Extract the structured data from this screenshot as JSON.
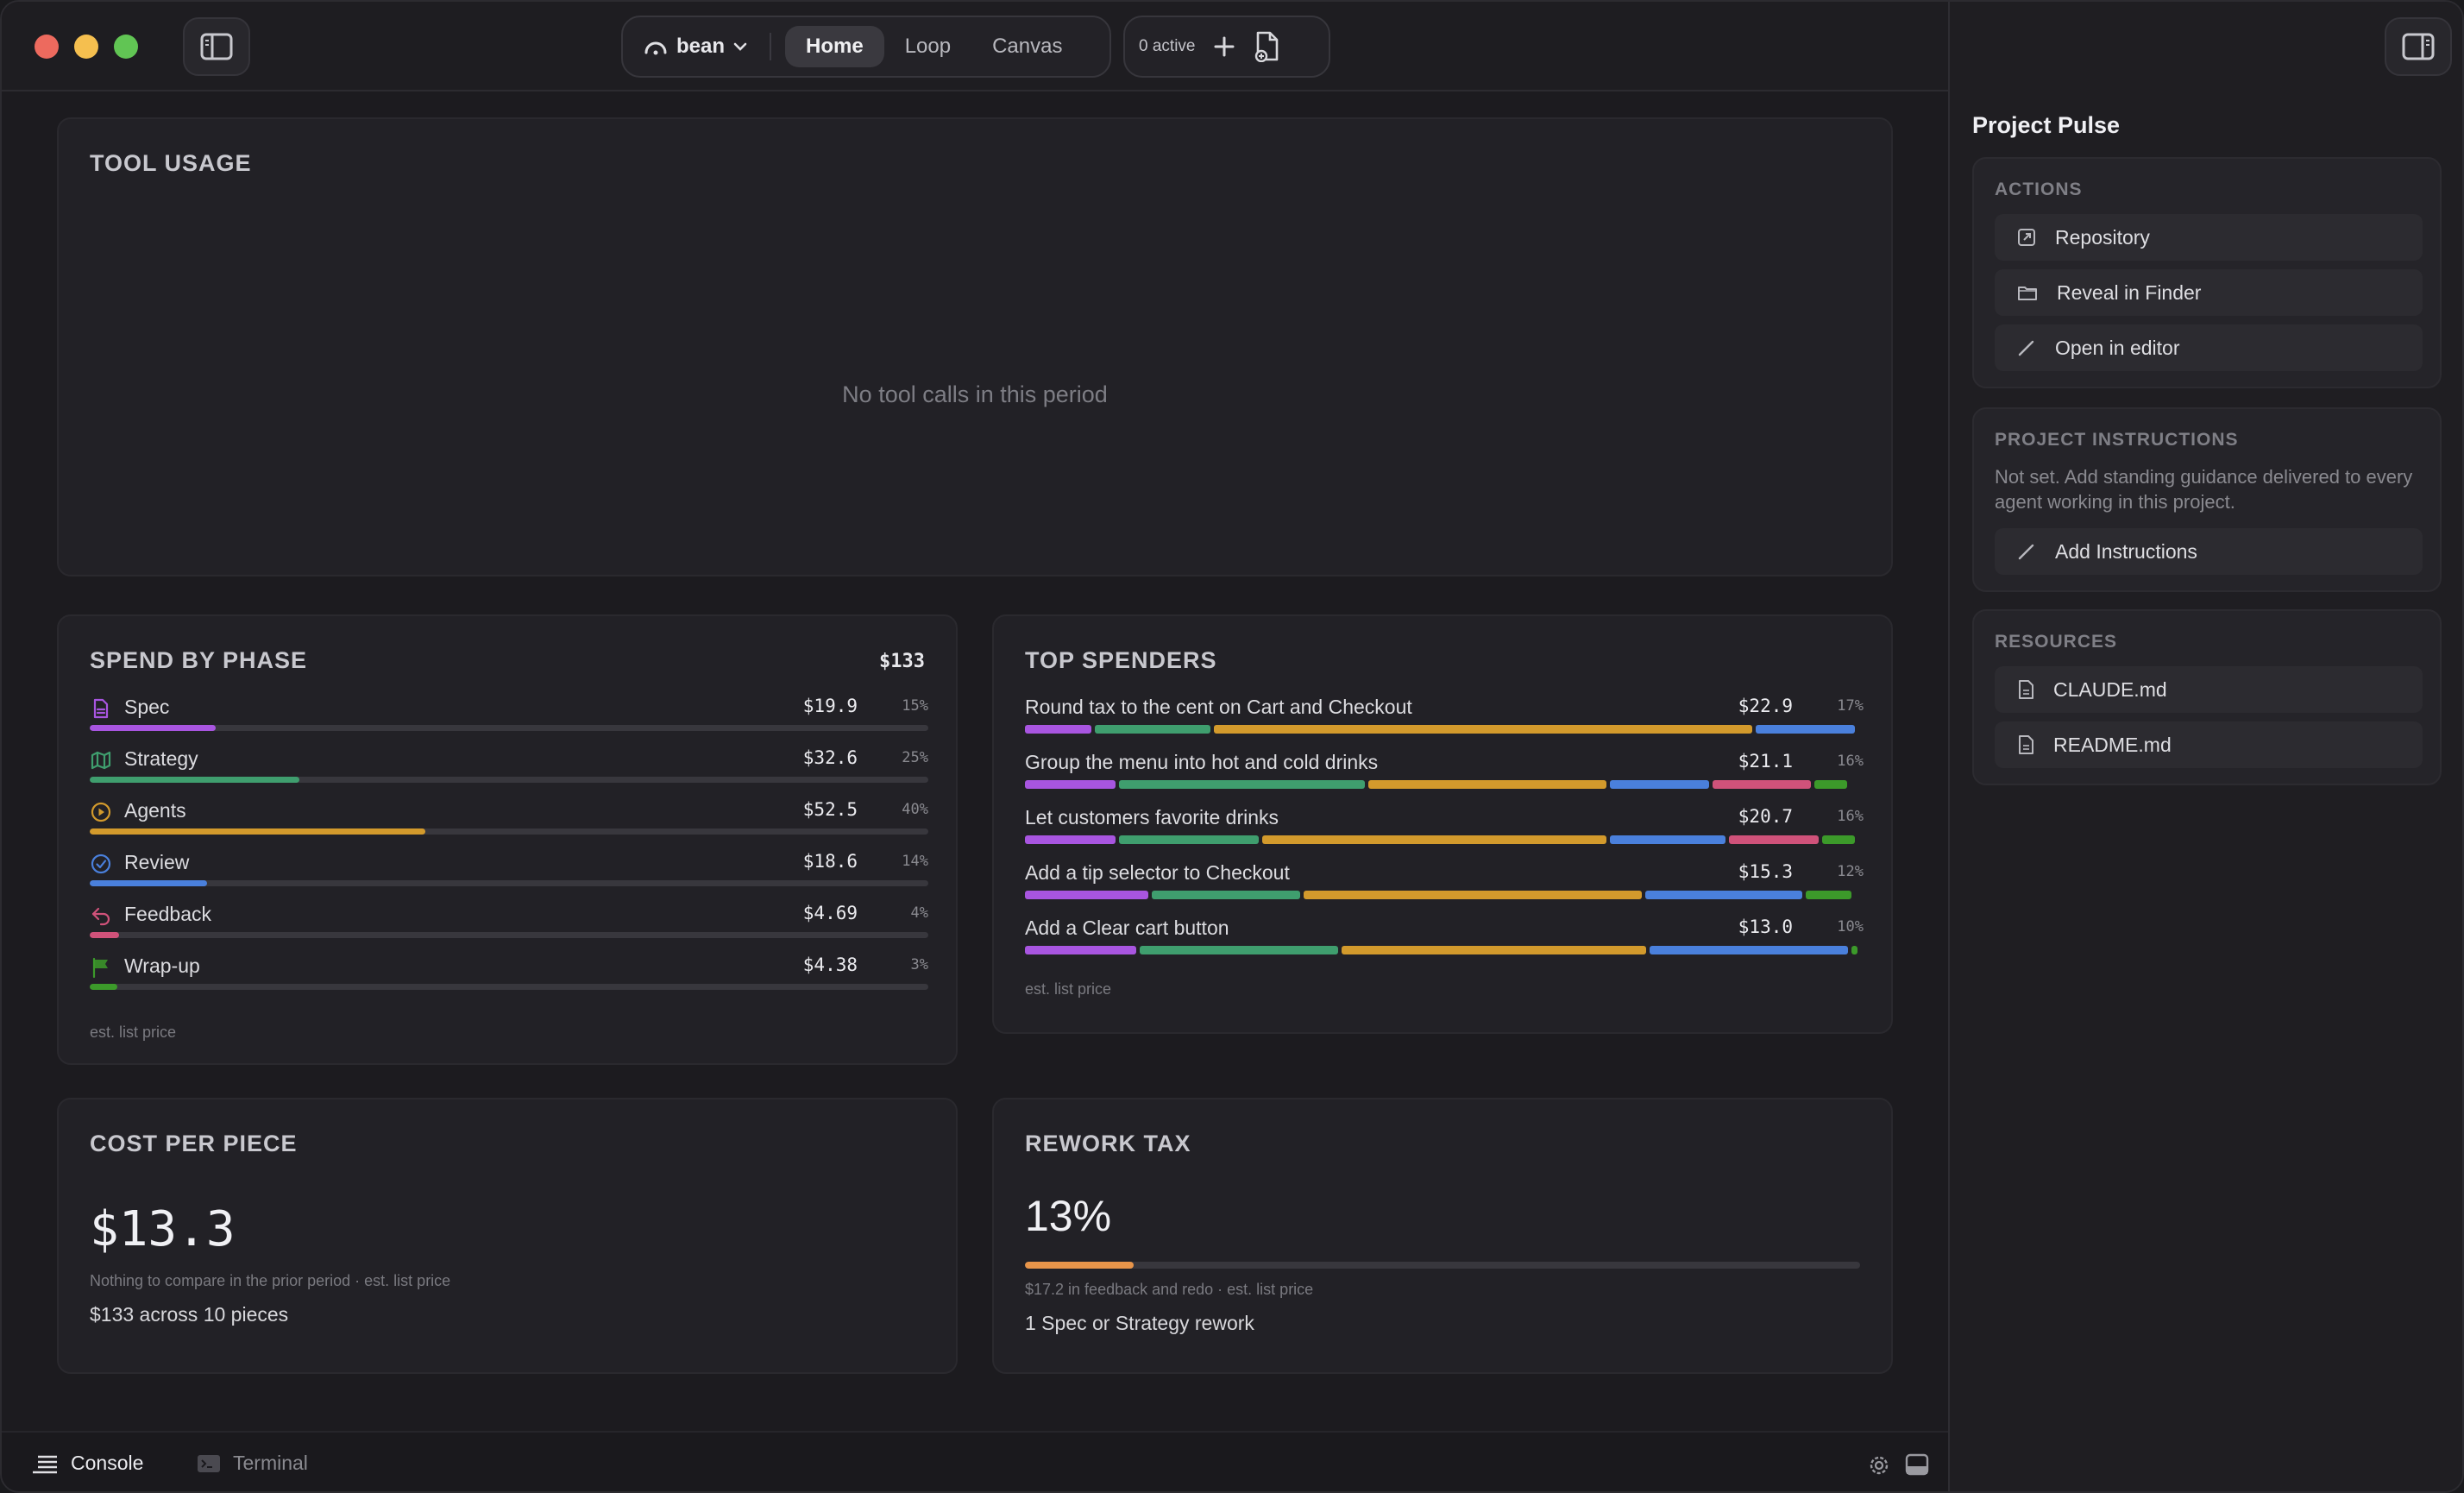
{
  "header": {
    "branch_label": "bean",
    "tabs": [
      {
        "label": "Home",
        "active": true
      },
      {
        "label": "Loop",
        "active": false
      },
      {
        "label": "Canvas",
        "active": false
      }
    ],
    "active_count": "0 active"
  },
  "tool_usage": {
    "title": "TOOL USAGE",
    "empty_message": "No tool calls in this period"
  },
  "spend_by_phase": {
    "title": "SPEND BY PHASE",
    "total": "$133",
    "footnote": "est. list price",
    "phases": [
      {
        "label": "Spec",
        "amount": "$19.9",
        "pct": "15%",
        "fraction": 0.15,
        "color": "#a855e0",
        "icon": "document-icon"
      },
      {
        "label": "Strategy",
        "amount": "$32.6",
        "pct": "25%",
        "fraction": 0.25,
        "color": "#3f9e6e",
        "icon": "map-icon"
      },
      {
        "label": "Agents",
        "amount": "$52.5",
        "pct": "40%",
        "fraction": 0.4,
        "color": "#d39a2c",
        "icon": "play-circle-icon"
      },
      {
        "label": "Review",
        "amount": "$18.6",
        "pct": "14%",
        "fraction": 0.14,
        "color": "#4a80dc",
        "icon": "check-circle-icon"
      },
      {
        "label": "Feedback",
        "amount": "$4.69",
        "pct": "4%",
        "fraction": 0.035,
        "color": "#d0527a",
        "icon": "reply-arrow-icon"
      },
      {
        "label": "Wrap-up",
        "amount": "$4.38",
        "pct": "3%",
        "fraction": 0.033,
        "color": "#3c9a2a",
        "icon": "flag-icon"
      }
    ]
  },
  "top_spenders": {
    "title": "TOP SPENDERS",
    "footnote": "est. list price",
    "rows": [
      {
        "label": "Round tax to the cent on Cart and Checkout",
        "amount": "$22.9",
        "pct": "17%",
        "segments": [
          0.08,
          0.14,
          0.65,
          0.12,
          0,
          0
        ]
      },
      {
        "label": "Group the menu into hot and cold drinks",
        "amount": "$21.1",
        "pct": "16%",
        "segments": [
          0.11,
          0.3,
          0.29,
          0.12,
          0.12,
          0.04
        ]
      },
      {
        "label": "Let customers favorite drinks",
        "amount": "$20.7",
        "pct": "16%",
        "segments": [
          0.11,
          0.17,
          0.42,
          0.14,
          0.11,
          0.04
        ]
      },
      {
        "label": "Add a tip selector to Checkout",
        "amount": "$15.3",
        "pct": "12%",
        "segments": [
          0.15,
          0.18,
          0.41,
          0.19,
          0,
          0.055
        ]
      },
      {
        "label": "Add a Clear cart button",
        "amount": "$13.0",
        "pct": "10%",
        "segments": [
          0.135,
          0.24,
          0.37,
          0.24,
          0,
          0.008
        ]
      }
    ]
  },
  "cost_per_piece": {
    "title": "COST PER PIECE",
    "value": "$13.3",
    "note": "Nothing to compare in the prior period · est. list price",
    "detail": "$133 across 10 pieces"
  },
  "rework_tax": {
    "title": "REWORK TAX",
    "value": "13%",
    "fraction": 0.13,
    "note": "$17.2 in feedback and redo · est. list price",
    "detail": "1 Spec or Strategy rework"
  },
  "bottom_bar": {
    "console_label": "Console",
    "terminal_label": "Terminal"
  },
  "right_panel": {
    "title": "Project Pulse",
    "actions_title": "ACTIONS",
    "actions": [
      {
        "label": "Repository",
        "icon": "external-link-icon"
      },
      {
        "label": "Reveal in Finder",
        "icon": "folder-icon"
      },
      {
        "label": "Open in editor",
        "icon": "pencil-icon"
      }
    ],
    "instructions_title": "PROJECT INSTRUCTIONS",
    "instructions_text": "Not set. Add standing guidance delivered to every agent working in this project.",
    "add_instructions_label": "Add Instructions",
    "resources_title": "RESOURCES",
    "resources": [
      {
        "label": "CLAUDE.md",
        "icon": "file-icon"
      },
      {
        "label": "README.md",
        "icon": "file-icon"
      }
    ]
  },
  "colors": {
    "spec": "#a855e0",
    "strategy": "#3f9e6e",
    "agents": "#d39a2c",
    "review": "#4a80dc",
    "feedback": "#d0527a",
    "wrapup": "#3c9a2a",
    "rework": "#e8954a"
  }
}
